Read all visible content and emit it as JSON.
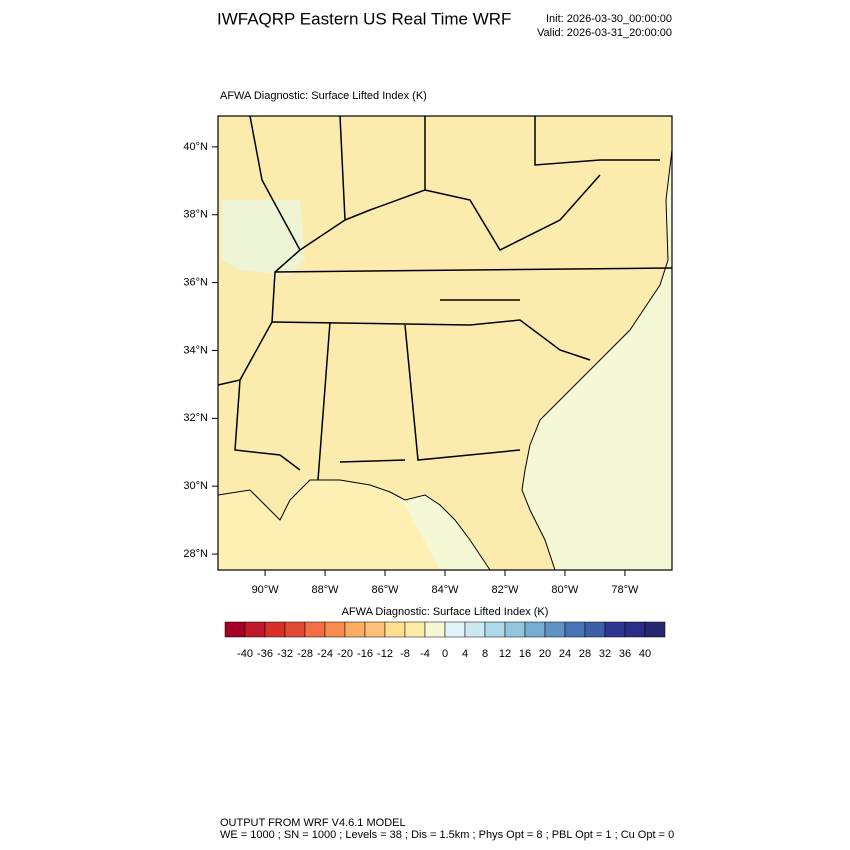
{
  "header": {
    "title": "IWFAQRP Eastern US Real Time WRF",
    "init": "Init: 2026-03-30_00:00:00",
    "valid": "Valid: 2026-03-31_20:00:00"
  },
  "map": {
    "title": "AFWA Diagnostic: Surface Lifted Index   (K)",
    "xlim": [
      -91.57,
      -76.43
    ],
    "ylim": [
      27.53,
      40.91
    ],
    "xticks": [
      {
        "value": -90,
        "label": "90°W"
      },
      {
        "value": -88,
        "label": "88°W"
      },
      {
        "value": -86,
        "label": "86°W"
      },
      {
        "value": -84,
        "label": "84°W"
      },
      {
        "value": -82,
        "label": "82°W"
      },
      {
        "value": -80,
        "label": "80°W"
      },
      {
        "value": -78,
        "label": "78°W"
      }
    ],
    "yticks": [
      {
        "value": 40,
        "label": "40°N"
      },
      {
        "value": 38,
        "label": "38°N"
      },
      {
        "value": 36,
        "label": "36°N"
      },
      {
        "value": 34,
        "label": "34°N"
      },
      {
        "value": 32,
        "label": "32°N"
      },
      {
        "value": 30,
        "label": "30°N"
      },
      {
        "value": 28,
        "label": "28°N"
      }
    ],
    "land_color": "#fbecae",
    "ocean_color": "#f4f8d4",
    "gulf_color": "#fdf0b2"
  },
  "colorbar": {
    "title": "AFWA Diagnostic: Surface Lifted Index  (K)",
    "ticks": [
      -40,
      -36,
      -32,
      -28,
      -24,
      -20,
      -16,
      -12,
      -8,
      -4,
      0,
      4,
      8,
      12,
      16,
      20,
      24,
      28,
      32,
      36,
      40
    ],
    "colors": [
      "#a50026",
      "#c1182a",
      "#d73027",
      "#e34a33",
      "#f46d43",
      "#f78c51",
      "#fdae61",
      "#fec17a",
      "#fee090",
      "#fdeda8",
      "#f5f8d2",
      "#e0f3f8",
      "#cbe8f0",
      "#abd9e9",
      "#92c5de",
      "#74add1",
      "#5f93c4",
      "#4575b4",
      "#3d5fa8",
      "#313695",
      "#2b2e87",
      "#262870"
    ]
  },
  "footer": {
    "line1": "OUTPUT FROM WRF V4.6.1 MODEL",
    "line2": "WE = 1000 ; SN = 1000 ; Levels = 38 ; Dis = 1.5km ; Phys Opt = 8 ; PBL Opt = 1 ; Cu Opt = 0"
  }
}
